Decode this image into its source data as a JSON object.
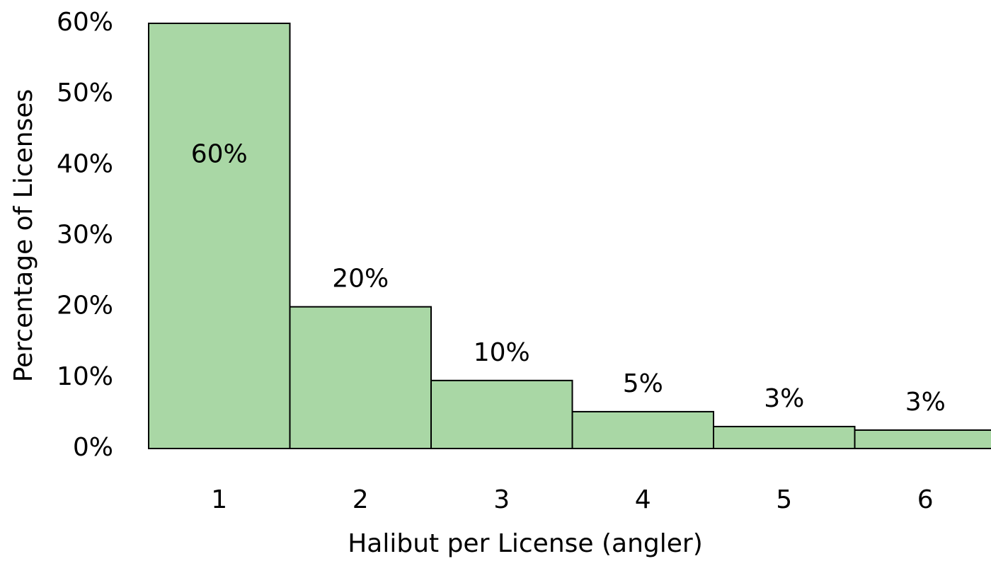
{
  "chart_data": {
    "type": "bar",
    "x_label": "Halibut per License (angler)",
    "y_label": "Percentage of Licenses",
    "categories": [
      "1",
      "2",
      "3",
      "4",
      "5",
      "6"
    ],
    "values": [
      60,
      20,
      9.6,
      5.2,
      3.1,
      2.6
    ],
    "value_labels": [
      "60%",
      "20%",
      "10%",
      "5%",
      "3%",
      "3%"
    ],
    "color": "#a9d7a5",
    "ylim": [
      0,
      60
    ],
    "yticks": [
      {
        "value": 0,
        "label": "0%"
      },
      {
        "value": 10,
        "label": "10%"
      },
      {
        "value": 20,
        "label": "20%"
      },
      {
        "value": 30,
        "label": "30%"
      },
      {
        "value": 40,
        "label": "40%"
      },
      {
        "value": 50,
        "label": "50%"
      },
      {
        "value": 60,
        "label": "60%"
      }
    ],
    "grid": false
  }
}
